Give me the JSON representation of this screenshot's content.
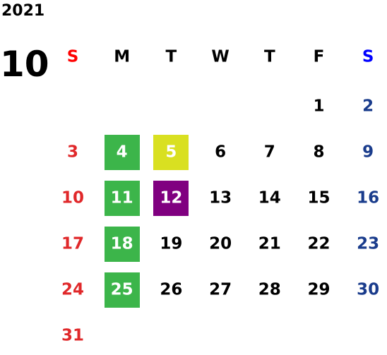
{
  "year": "2021",
  "month": "10",
  "weekdays": [
    "S",
    "M",
    "T",
    "W",
    "T",
    "F",
    "S"
  ],
  "weekday_colors": [
    "#ff0000",
    "#000000",
    "#000000",
    "#000000",
    "#000000",
    "#000000",
    "#0000ff"
  ],
  "day_colors": [
    "#e0282a",
    "#000000",
    "#000000",
    "#000000",
    "#000000",
    "#000000",
    "#1a3c8c"
  ],
  "highlight_text_color": "#ffffff",
  "weeks": [
    [
      null,
      null,
      null,
      null,
      null,
      1,
      2
    ],
    [
      3,
      {
        "day": 4,
        "highlight": "#3cb54a"
      },
      {
        "day": 5,
        "highlight": "#d9e021"
      },
      6,
      7,
      8,
      9
    ],
    [
      10,
      {
        "day": 11,
        "highlight": "#3cb54a"
      },
      {
        "day": 12,
        "highlight": "#800080"
      },
      13,
      14,
      15,
      16
    ],
    [
      17,
      {
        "day": 18,
        "highlight": "#3cb54a"
      },
      19,
      20,
      21,
      22,
      23
    ],
    [
      24,
      {
        "day": 25,
        "highlight": "#3cb54a"
      },
      26,
      27,
      28,
      29,
      30
    ],
    [
      31,
      null,
      null,
      null,
      null,
      null,
      null
    ]
  ]
}
